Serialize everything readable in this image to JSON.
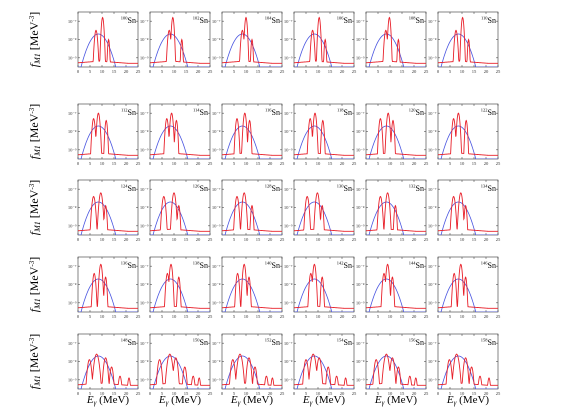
{
  "figure": {
    "ylabel_main": "f",
    "ylabel_sub": "M1",
    "ylabel_unit": " [MeV",
    "ylabel_unit_sup": "-3",
    "ylabel_close": "]",
    "xlabel_main": "E",
    "xlabel_sub": "γ",
    "xlabel_unit": " (MeV)"
  },
  "chart_data": {
    "type": "line",
    "layout": "small multiples, 5 rows x 6 columns",
    "xlabel": "Eγ (MeV)",
    "ylabel": "fM1 [MeV-3]",
    "xlim": [
      0,
      25
    ],
    "x_ticks": [
      0,
      5,
      10,
      15,
      20,
      25
    ],
    "y_scale": "log",
    "y_ticks": [
      "10⁻⁹",
      "10⁻⁸",
      "10⁻⁷"
    ],
    "y_range_decades": [
      -9.5,
      -6.5
    ],
    "series_styles": [
      {
        "color": "#e8202a",
        "style": "solid",
        "shape": "multi-peak narrow spikes"
      },
      {
        "color": "#4a55e0",
        "style": "solid",
        "shape": "broad single bump"
      }
    ],
    "panels": [
      {
        "mass": "100",
        "element": "Sn"
      },
      {
        "mass": "102",
        "element": "Sn"
      },
      {
        "mass": "104",
        "element": "Sn"
      },
      {
        "mass": "106",
        "element": "Sn"
      },
      {
        "mass": "108",
        "element": "Sn"
      },
      {
        "mass": "110",
        "element": "Sn"
      },
      {
        "mass": "112",
        "element": "Sn"
      },
      {
        "mass": "114",
        "element": "Sn"
      },
      {
        "mass": "116",
        "element": "Sn"
      },
      {
        "mass": "118",
        "element": "Sn"
      },
      {
        "mass": "120",
        "element": "Sn"
      },
      {
        "mass": "122",
        "element": "Sn"
      },
      {
        "mass": "124",
        "element": "Sn"
      },
      {
        "mass": "126",
        "element": "Sn"
      },
      {
        "mass": "128",
        "element": "Sn"
      },
      {
        "mass": "130",
        "element": "Sn"
      },
      {
        "mass": "132",
        "element": "Sn"
      },
      {
        "mass": "134",
        "element": "Sn"
      },
      {
        "mass": "136",
        "element": "Sn"
      },
      {
        "mass": "138",
        "element": "Sn"
      },
      {
        "mass": "140",
        "element": "Sn"
      },
      {
        "mass": "142",
        "element": "Sn"
      },
      {
        "mass": "144",
        "element": "Sn"
      },
      {
        "mass": "146",
        "element": "Sn"
      },
      {
        "mass": "148",
        "element": "Sn"
      },
      {
        "mass": "150",
        "element": "Sn"
      },
      {
        "mass": "152",
        "element": "Sn"
      },
      {
        "mass": "154",
        "element": "Sn"
      },
      {
        "mass": "156",
        "element": "Sn"
      },
      {
        "mass": "158",
        "element": "Sn"
      }
    ],
    "red_peaks_by_row": [
      [
        [
          8,
          -7.5,
          0.6
        ],
        [
          10,
          -6.8,
          0.5
        ],
        [
          13,
          -8.0,
          0.4
        ]
      ],
      [
        [
          6.5,
          -7.3,
          0.6
        ],
        [
          9,
          -7.0,
          0.6
        ],
        [
          11.5,
          -7.4,
          0.5
        ]
      ],
      [
        [
          6,
          -7.4,
          0.7
        ],
        [
          9.5,
          -7.2,
          0.7
        ],
        [
          12,
          -7.9,
          0.5
        ]
      ],
      [
        [
          7,
          -7.4,
          0.6
        ],
        [
          9,
          -6.9,
          0.6
        ],
        [
          11.5,
          -7.6,
          0.5
        ]
      ],
      [
        [
          4.5,
          -7.9,
          0.8
        ],
        [
          8,
          -7.6,
          1.0
        ],
        [
          11,
          -7.8,
          0.8
        ],
        [
          14,
          -8.3,
          0.7
        ],
        [
          18,
          -8.8,
          0.7
        ],
        [
          21,
          -8.9,
          0.6
        ]
      ]
    ],
    "blue_bump": {
      "center": 8.5,
      "peak": -7.7,
      "width": 4.0
    }
  }
}
